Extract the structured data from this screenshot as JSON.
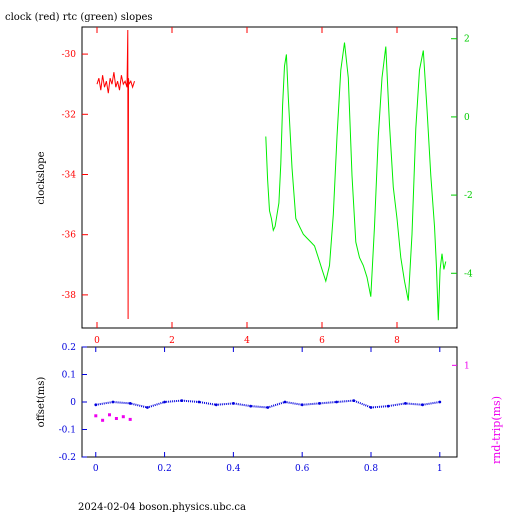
{
  "chart_data": [
    {
      "type": "line",
      "title": "clock (red) rtc (green) slopes",
      "ylabel": "clockslope",
      "xlim": [
        -0.4,
        9.6
      ],
      "x_ticks": [
        "0",
        "2",
        "4",
        "6",
        "8"
      ],
      "x_tick_values": [
        0,
        2,
        4,
        6,
        8
      ],
      "ylim_left": [
        -39.1,
        -29.1
      ],
      "y_ticks_left": [
        "-30",
        "-32",
        "-34",
        "-36",
        "-38"
      ],
      "y_tick_values_left": [
        -30,
        -32,
        -34,
        -36,
        -38
      ],
      "ylim_right": [
        -5.4,
        2.3
      ],
      "y_ticks_right": [
        "2",
        "0",
        "-2",
        "-4"
      ],
      "y_tick_values_right": [
        2,
        0,
        -2,
        -4
      ],
      "colors": {
        "clock": "#ff0000",
        "rtc": "#00ee00",
        "axis_left": "#ff0000",
        "axis_right": "#00cc00"
      },
      "series": [
        {
          "axis": "left",
          "color": "#ff0000",
          "x": [
            0.0,
            0.05,
            0.1,
            0.15,
            0.2,
            0.25,
            0.3,
            0.35,
            0.4,
            0.45,
            0.5,
            0.55,
            0.6,
            0.65,
            0.7,
            0.75,
            0.8,
            0.82,
            0.83,
            0.84,
            0.85,
            0.9,
            0.95,
            1.0
          ],
          "y": [
            -31.0,
            -30.8,
            -31.2,
            -30.7,
            -31.1,
            -30.9,
            -31.3,
            -30.8,
            -31.0,
            -30.6,
            -31.1,
            -30.9,
            -31.2,
            -30.7,
            -31.0,
            -30.9,
            -31.1,
            -29.2,
            -38.8,
            -30.8,
            -31.0,
            -30.9,
            -31.1,
            -30.9
          ]
        },
        {
          "axis": "right",
          "color": "#00ee00",
          "x": [
            4.5,
            4.55,
            4.6,
            4.65,
            4.7,
            4.75,
            4.8,
            4.85,
            4.9,
            4.95,
            5.0,
            5.05,
            5.1,
            5.2,
            5.3,
            5.4,
            5.5,
            5.6,
            5.7,
            5.8,
            5.9,
            6.0,
            6.1,
            6.2,
            6.3,
            6.4,
            6.5,
            6.6,
            6.7,
            6.8,
            6.9,
            7.0,
            7.1,
            7.2,
            7.3,
            7.4,
            7.5,
            7.6,
            7.7,
            7.8,
            7.9,
            8.0,
            8.1,
            8.2,
            8.3,
            8.4,
            8.5,
            8.6,
            8.7,
            8.8,
            8.9,
            9.0,
            9.05,
            9.1,
            9.15,
            9.2,
            9.25,
            9.3
          ],
          "y": [
            -0.5,
            -1.6,
            -2.4,
            -2.6,
            -2.9,
            -2.8,
            -2.5,
            -2.2,
            -1.2,
            0.3,
            1.3,
            1.6,
            0.5,
            -1.3,
            -2.6,
            -2.8,
            -3.0,
            -3.1,
            -3.2,
            -3.3,
            -3.6,
            -3.9,
            -4.2,
            -3.8,
            -2.5,
            -0.5,
            1.2,
            1.9,
            1.0,
            -1.5,
            -3.2,
            -3.6,
            -3.8,
            -4.1,
            -4.6,
            -2.8,
            -0.5,
            1.0,
            1.8,
            -0.2,
            -1.8,
            -2.6,
            -3.6,
            -4.2,
            -4.7,
            -3.0,
            -0.3,
            1.2,
            1.7,
            0.2,
            -1.5,
            -2.8,
            -3.8,
            -5.2,
            -3.9,
            -3.5,
            -3.9,
            -3.7
          ]
        }
      ]
    },
    {
      "type": "scatter",
      "xlabel": "",
      "ylabel_left": "offset(ms)",
      "ylabel_right": "rnd-trip(ms)",
      "xlim": [
        -0.04,
        1.05
      ],
      "x_ticks": [
        "0",
        "0.2",
        "0.4",
        "0.6",
        "0.8",
        "1"
      ],
      "x_tick_values": [
        0,
        0.2,
        0.4,
        0.6,
        0.8,
        1.0
      ],
      "ylim_left": [
        -0.2,
        0.2
      ],
      "y_ticks_left": [
        "0.2",
        "0.1",
        "0",
        "-0.1",
        "-0.2"
      ],
      "y_tick_values_left": [
        0.2,
        0.1,
        0,
        -0.1,
        -0.2
      ],
      "ylim_right": [
        0,
        1.2
      ],
      "y_ticks_right": [
        "1"
      ],
      "y_tick_values_right": [
        1
      ],
      "colors": {
        "offset": "#0000dd",
        "rndtrip": "#ee00ee"
      },
      "series": [
        {
          "name": "offset",
          "axis": "left",
          "color": "#0000dd",
          "x": [
            0.0,
            0.05,
            0.1,
            0.15,
            0.2,
            0.25,
            0.3,
            0.35,
            0.4,
            0.45,
            0.5,
            0.55,
            0.6,
            0.65,
            0.7,
            0.75,
            0.8,
            0.85,
            0.9,
            0.95,
            1.0
          ],
          "y": [
            -0.01,
            0.0,
            -0.005,
            -0.02,
            0.0,
            0.005,
            0.0,
            -0.01,
            -0.005,
            -0.015,
            -0.02,
            0.0,
            -0.01,
            -0.005,
            0.0,
            0.005,
            -0.02,
            -0.015,
            -0.005,
            -0.01,
            0.0
          ]
        },
        {
          "name": "rnd-trip",
          "axis": "right",
          "color": "#ee00ee",
          "x": [
            0.0,
            0.02,
            0.04,
            0.06,
            0.08,
            0.1
          ],
          "y": [
            0.45,
            0.4,
            0.46,
            0.42,
            0.44,
            0.41
          ]
        }
      ]
    }
  ],
  "footer": "2024-02-04 boson.physics.ubc.ca"
}
